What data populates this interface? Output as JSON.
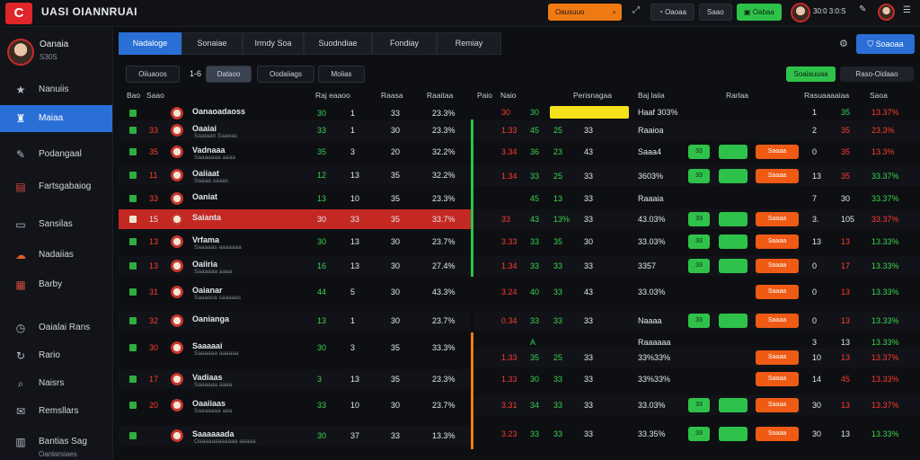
{
  "header": {
    "logo_glyph": "C",
    "title": "UASI OIANNRUAI",
    "orange_button": "Oausuuo",
    "orange_icon": "search-icon",
    "pill1": "Oaoaa",
    "pill2": "Saao",
    "pill3": "Oabaa",
    "user_text": "30:0 3:0:S"
  },
  "profile": {
    "name": "Oanaia",
    "sub": "S30S"
  },
  "sidebar": {
    "items": [
      {
        "label": "Nanuiis",
        "icon": "star-icon"
      },
      {
        "label": "Maiaa",
        "icon": "trophy-icon",
        "active": true
      },
      {
        "label": "Podangaal",
        "icon": "pen-icon"
      },
      {
        "label": "Fartsgabaiog",
        "icon": "flag-icon"
      },
      {
        "label": "Sansilas",
        "icon": "monitor-icon"
      },
      {
        "label": "Nadaiias",
        "icon": "cloud-icon"
      },
      {
        "label": "Barby",
        "icon": "grid-icon"
      },
      {
        "label": "Oaialai Rans",
        "icon": "clock-icon"
      },
      {
        "label": "Rario",
        "icon": "refresh-icon"
      },
      {
        "label": "Naisrs",
        "icon": "search-icon"
      },
      {
        "label": "Remsllars",
        "icon": "mail-icon"
      },
      {
        "label": "Bantias Sag",
        "icon": "chart-icon"
      }
    ],
    "footer_sub": "Oanlarsiaes"
  },
  "tabs": [
    "Nadaloge",
    "Sonaiae",
    "Irmdy Soa",
    "Suodndiae",
    "Fondiay",
    "Remiay"
  ],
  "top_right_button": "Soaoaa",
  "filters": [
    "Oiiuaoos",
    "Dataoo",
    "Oodaiiags",
    "Moiias"
  ],
  "filter_prefix": "1-6",
  "filter_right_green": "Soaiauuaa",
  "filter_right_dark": "Raso-Oidaao",
  "left_headers": [
    "Bao",
    "Saao",
    "Raj eaaoo",
    "Raasa",
    "Raaitaa"
  ],
  "right_headers": [
    "Paio",
    "Naio",
    "Perisnagaa",
    "Baj laiia",
    "Rarlaa",
    "Rasuaaaaiaa",
    "Saoa"
  ],
  "left_rows": [
    {
      "rank": "",
      "num": "",
      "team": "Oanaoadaoss",
      "sub": "",
      "a": "30",
      "b": "1",
      "c": "33",
      "pct": "23.3%",
      "style": "plain"
    },
    {
      "rank": "33",
      "num": "",
      "team": "Oaaiai",
      "sub": "Saataan Saaeas",
      "a": "33",
      "b": "1",
      "c": "30",
      "pct": "23.3%",
      "style": "alt"
    },
    {
      "rank": "35",
      "num": "",
      "team": "Vadnaaa",
      "sub": "Saaaaaaa aaaa",
      "a": "35",
      "b": "3",
      "c": "20",
      "pct": "32.2%",
      "style": "plain"
    },
    {
      "rank": "11",
      "num": "",
      "team": "Oaiiaat",
      "sub": "Saaaa saaas",
      "a": "12",
      "b": "13",
      "c": "35",
      "pct": "32.2%",
      "style": "alt"
    },
    {
      "rank": "33",
      "num": "",
      "team": "Oaniat",
      "sub": "",
      "a": "13",
      "b": "10",
      "c": "35",
      "pct": "23.3%",
      "style": "plain"
    },
    {
      "rank": "15",
      "num": "",
      "team": "Saianta",
      "sub": "",
      "a": "30",
      "b": "33",
      "c": "35",
      "pct": "33.7%",
      "style": "hl"
    },
    {
      "rank": "13",
      "num": "",
      "team": "Vrfama",
      "sub": "Saaaaas aaaaaaa",
      "a": "30",
      "b": "13",
      "c": "30",
      "pct": "23.7%",
      "style": "plain"
    },
    {
      "rank": "13",
      "num": "",
      "team": "Oaiiria",
      "sub": "Saaaaaa aaaa",
      "a": "16",
      "b": "13",
      "c": "30",
      "pct": "27.4%",
      "style": "alt"
    },
    {
      "rank": "31",
      "num": "",
      "team": "Oaianar",
      "sub": "Saaaasa saaaaas",
      "a": "44",
      "b": "5",
      "c": "30",
      "pct": "43.3%",
      "style": "plain"
    },
    {
      "rank": "32",
      "num": "",
      "team": "Oanianga",
      "sub": "",
      "a": "13",
      "b": "1",
      "c": "30",
      "pct": "23.7%",
      "style": "alt"
    },
    {
      "rank": "30",
      "num": "",
      "team": "Saaaaai",
      "sub": "Saaaaaa aaaaaa",
      "a": "30",
      "b": "3",
      "c": "35",
      "pct": "33.3%",
      "style": "plain"
    },
    {
      "rank": "17",
      "num": "",
      "team": "Vadiaas",
      "sub": "Saaaaaa aaaa",
      "a": "3",
      "b": "13",
      "c": "35",
      "pct": "23.3%",
      "style": "alt"
    },
    {
      "rank": "20",
      "num": "",
      "team": "Oaaiiaas",
      "sub": "Saaaaaaa aaa",
      "a": "33",
      "b": "10",
      "c": "30",
      "pct": "23.7%",
      "style": "plain"
    },
    {
      "rank": "",
      "num": "",
      "team": "Saaaaaada",
      "sub": "Oaaaaaaaaaaaa aaaaa",
      "a": "30",
      "b": "37",
      "c": "33",
      "pct": "13.3%",
      "style": "alt"
    }
  ],
  "right_rows": [
    {
      "p": "30",
      "n": "30",
      "v1": "",
      "v2": "",
      "name": "Haaf 303%",
      "g": "",
      "o": "",
      "x": "1",
      "y": "35",
      "z": "13.37%",
      "ycol": "green",
      "zcol": "red",
      "yb": true
    },
    {
      "p": "1.33",
      "n": "45",
      "v1": "25",
      "v2": "33",
      "name": "Raaioa",
      "g": "",
      "o": "",
      "x": "2",
      "y": "35",
      "z": "23.3%",
      "ycol": "red",
      "zcol": "red"
    },
    {
      "p": "3.34",
      "n": "36",
      "v1": "23",
      "v2": "43",
      "name": "Saaa4",
      "g": "33",
      "o": "Saaaa",
      "x": "0",
      "y": "35",
      "z": "13.3%",
      "ycol": "red",
      "zcol": "red"
    },
    {
      "p": "1.34",
      "n": "33",
      "v1": "25",
      "v2": "33",
      "name": "3603%",
      "g": "33",
      "o": "Saaaa",
      "x": "13",
      "y": "35",
      "z": "33.37%",
      "ycol": "red",
      "zcol": "green"
    },
    {
      "p": "",
      "n": "45",
      "v1": "13",
      "v2": "33",
      "name": "Raaaia",
      "g": "",
      "o": "",
      "x": "7",
      "y": "30",
      "z": "33.37%",
      "ycol": "white",
      "zcol": "green"
    },
    {
      "p": "33",
      "n": "43",
      "v1": "13%",
      "v2": "33",
      "name": "43.03%",
      "g": "33",
      "o": "Saaaa",
      "x": "3.",
      "y": "105",
      "z": "33.37%",
      "ycol": "white",
      "zcol": "red"
    },
    {
      "p": "3.33",
      "n": "33",
      "v1": "35",
      "v2": "30",
      "name": "33.03%",
      "g": "33",
      "o": "Saaaa",
      "x": "13",
      "y": "13",
      "z": "13.33%",
      "ycol": "red",
      "zcol": "green"
    },
    {
      "p": "1.34",
      "n": "33",
      "v1": "33",
      "v2": "33",
      "name": "3357",
      "g": "33",
      "o": "Saaaa",
      "x": "0",
      "y": "17",
      "z": "13.33%",
      "ycol": "red",
      "zcol": "green"
    },
    {
      "p": "3.24",
      "n": "40",
      "v1": "33",
      "v2": "43",
      "name": "33.03%",
      "g": "",
      "o": "Saaaa",
      "x": "0",
      "y": "13",
      "z": "13.33%",
      "ycol": "red",
      "zcol": "green"
    },
    {
      "p": "0.34",
      "n": "33",
      "v1": "33",
      "v2": "33",
      "name": "Naaaa",
      "g": "33",
      "o": "Saaaa",
      "x": "0",
      "y": "13",
      "z": "13.33%",
      "ycol": "red",
      "zcol": "green"
    },
    {
      "p": "",
      "n": "A",
      "v1": "",
      "v2": "",
      "name": "Raaaaaa",
      "g": "",
      "o": "",
      "x": "3",
      "y": "13",
      "z": "13.33%",
      "ycol": "white",
      "zcol": "green"
    },
    {
      "p": "1.33",
      "n": "35",
      "v1": "25",
      "v2": "33",
      "name": "33%33%",
      "g": "",
      "o": "Saaaa",
      "x": "10",
      "y": "13",
      "z": "13.37%",
      "ycol": "red",
      "zcol": "red"
    },
    {
      "p": "1.33",
      "n": "30",
      "v1": "33",
      "v2": "33",
      "name": "33%33%",
      "g": "",
      "o": "Saaaa",
      "x": "14",
      "y": "45",
      "z": "13.33%",
      "ycol": "red",
      "zcol": "red"
    },
    {
      "p": "3.31",
      "n": "34",
      "v1": "33",
      "v2": "33",
      "name": "33.03%",
      "g": "33",
      "o": "Saaaa",
      "x": "30",
      "y": "13",
      "z": "13.37%",
      "ycol": "red",
      "zcol": "red"
    },
    {
      "p": "3.23",
      "n": "33",
      "v1": "33",
      "v2": "33",
      "name": "33.35%",
      "g": "33",
      "o": "Saaaa",
      "x": "30",
      "y": "13",
      "z": "13.33%",
      "ycol": "white",
      "zcol": "green"
    }
  ]
}
